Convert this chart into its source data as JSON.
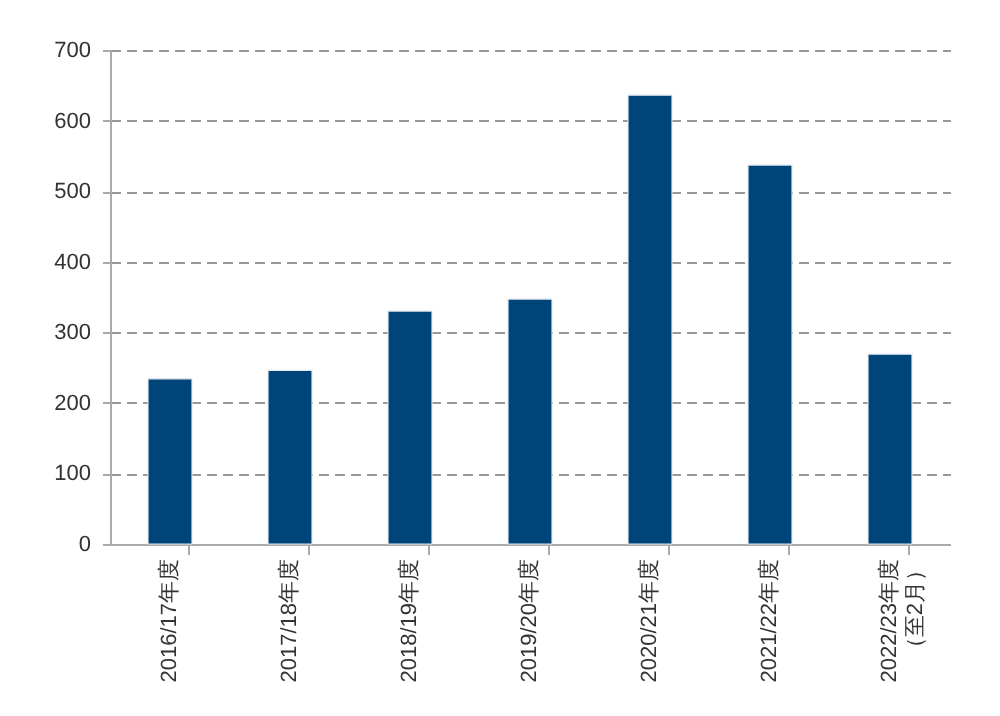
{
  "chart_data": {
    "type": "bar",
    "categories": [
      "2016/17年度",
      "2017/18年度",
      "2018/19年度",
      "2019/20年度",
      "2020/21年度",
      "2021/22年度",
      "2022/23年度（至2月）"
    ],
    "values": [
      234,
      246,
      330,
      347,
      636,
      537,
      269
    ],
    "color": "#00457a",
    "ylim": [
      0,
      700
    ],
    "yticks": [
      0,
      100,
      200,
      300,
      400,
      500,
      600,
      700
    ],
    "grid": "y"
  }
}
